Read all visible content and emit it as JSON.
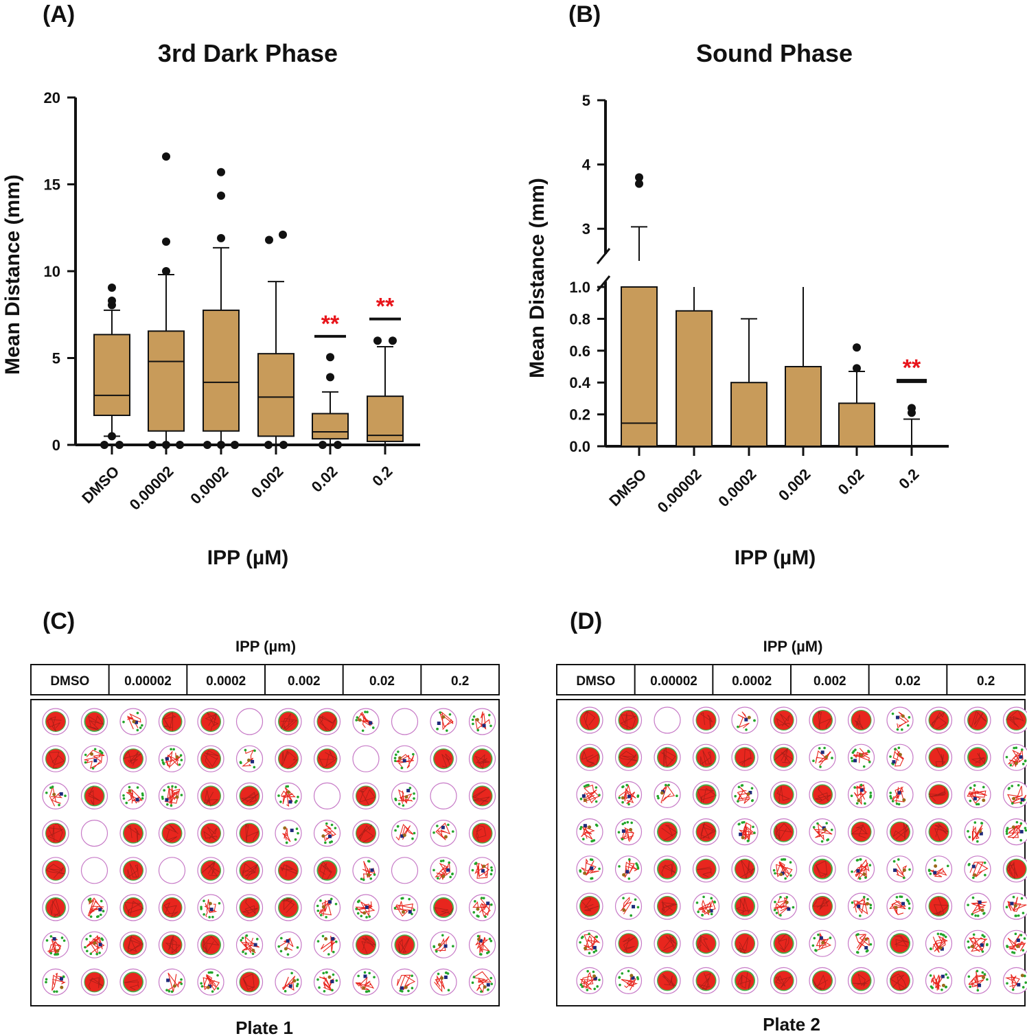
{
  "panels": {
    "a_label": "(A)",
    "b_label": "(B)",
    "c_label": "(C)",
    "d_label": "(D)"
  },
  "colors": {
    "box_fill": "#C89B5A",
    "axis": "#111111",
    "significance": "#E8151B",
    "trace_red": "#E8261E",
    "trace_green": "#22A52A",
    "well_outline": "#C77AC7",
    "marker_blue": "#1E2A7A",
    "marker_brown": "#9A6A1A"
  },
  "chart_data": [
    {
      "type": "box",
      "title": "3rd Dark Phase",
      "xlabel": "IPP (µM)",
      "ylabel": "Mean Distance (mm)",
      "ylim": [
        0,
        20
      ],
      "yticks": [
        "0",
        "5",
        "10",
        "15",
        "20"
      ],
      "yticks_values": [
        0,
        5,
        10,
        15,
        20
      ],
      "categories": [
        "DMSO",
        "0.00002",
        "0.0002",
        "0.002",
        "0.02",
        "0.2"
      ],
      "boxes": [
        {
          "q1": 1.7,
          "median": 2.85,
          "q3": 6.35,
          "whisker_low": 0.5,
          "whisker_high": 7.75,
          "outliers": [
            9.05,
            8.05,
            8.3,
            0.5,
            0.0,
            0.0
          ]
        },
        {
          "q1": 0.8,
          "median": 4.8,
          "q3": 6.55,
          "whisker_low": 0.0,
          "whisker_high": 9.8,
          "outliers": [
            16.6,
            11.7,
            10.0,
            0.0,
            0.0,
            0.0
          ]
        },
        {
          "q1": 0.8,
          "median": 3.6,
          "q3": 7.75,
          "whisker_low": 0.0,
          "whisker_high": 11.35,
          "outliers": [
            15.7,
            14.35,
            11.9,
            0.0,
            0.0,
            0.0
          ]
        },
        {
          "q1": 0.5,
          "median": 2.75,
          "q3": 5.25,
          "whisker_low": 0.0,
          "whisker_high": 9.4,
          "outliers": [
            11.8,
            12.1,
            0.0,
            0.0
          ]
        },
        {
          "q1": 0.35,
          "median": 0.75,
          "q3": 1.8,
          "whisker_low": 0.0,
          "whisker_high": 3.05,
          "outliers": [
            5.05,
            3.9,
            0.0,
            0.0
          ]
        },
        {
          "q1": 0.2,
          "median": 0.55,
          "q3": 2.8,
          "whisker_low": 0.0,
          "whisker_high": 5.65,
          "outliers": [
            6.0,
            6.0
          ]
        }
      ],
      "annotations": [
        {
          "category": "0.02",
          "text": "**",
          "bar_value": 6.25
        },
        {
          "category": "0.2",
          "text": "**",
          "bar_value": 7.25
        }
      ]
    },
    {
      "type": "bar",
      "title": "Sound Phase",
      "xlabel": "IPP (µM)",
      "ylabel": "Mean Distance (mm)",
      "axis_break": true,
      "lower_ylim": [
        0,
        1.0
      ],
      "upper_ylim": [
        2.5,
        5
      ],
      "yticks_lower": [
        "0.0",
        "0.2",
        "0.4",
        "0.6",
        "0.8",
        "1.0"
      ],
      "yticks_lower_values": [
        0,
        0.2,
        0.4,
        0.6,
        0.8,
        1.0
      ],
      "yticks_upper": [
        "3",
        "4",
        "5"
      ],
      "yticks_upper_values": [
        3,
        4,
        5
      ],
      "categories": [
        "DMSO",
        "0.00002",
        "0.0002",
        "0.002",
        "0.02",
        "0.2"
      ],
      "values": [
        1.0,
        0.85,
        0.4,
        0.5,
        0.27,
        0.0
      ],
      "median_line": [
        0.145,
        null,
        null,
        null,
        null,
        null
      ],
      "error_top": [
        3.03,
        1.0,
        0.8,
        1.0,
        0.47,
        0.17
      ],
      "outliers": [
        [
          3.8,
          3.7
        ],
        [],
        [],
        [],
        [
          0.62,
          0.49
        ],
        [
          0.24,
          0.21
        ]
      ],
      "annotations": [
        {
          "category": "0.2",
          "text": "**",
          "bar_value": 0.41
        }
      ]
    }
  ],
  "plates": {
    "c_header": "IPP (µm)",
    "d_header": "IPP (µM)",
    "columns": [
      "DMSO",
      "0.00002",
      "0.0002",
      "0.002",
      "0.02",
      "0.2"
    ],
    "plate1_name": "Plate 1",
    "plate2_name": "Plate 2",
    "rows": 8,
    "cols": 12,
    "plate1_activity": [
      [
        0.95,
        0.6,
        0.2,
        0.8,
        0.85,
        0.0,
        0.75,
        0.95,
        0.3,
        0.05,
        0.15,
        0.25
      ],
      [
        0.9,
        0.5,
        0.85,
        0.55,
        0.95,
        0.2,
        0.9,
        0.9,
        0.05,
        0.3,
        0.8,
        0.7
      ],
      [
        0.2,
        0.7,
        0.5,
        0.55,
        0.85,
        0.9,
        0.35,
        0.05,
        0.95,
        0.4,
        0.0,
        0.85
      ],
      [
        0.95,
        0.05,
        0.75,
        0.85,
        0.95,
        0.85,
        0.15,
        0.3,
        0.9,
        0.15,
        0.1,
        0.85
      ],
      [
        0.95,
        0.0,
        0.85,
        0.05,
        0.8,
        0.85,
        0.9,
        0.6,
        0.4,
        0.0,
        0.5,
        0.3
      ],
      [
        0.75,
        0.5,
        0.85,
        0.95,
        0.35,
        0.9,
        0.7,
        0.4,
        0.45,
        0.3,
        0.6,
        0.45
      ],
      [
        0.5,
        0.55,
        0.9,
        0.95,
        0.75,
        0.5,
        0.15,
        0.15,
        0.85,
        0.7,
        0.2,
        0.35
      ],
      [
        0.3,
        0.95,
        0.7,
        0.15,
        0.5,
        0.95,
        0.15,
        0.55,
        0.4,
        0.2,
        0.15,
        0.35
      ]
    ],
    "plate2_activity": [
      [
        0.95,
        0.85,
        0.0,
        0.95,
        0.1,
        0.95,
        0.9,
        0.95,
        0.2,
        0.9,
        0.85,
        0.95
      ],
      [
        0.9,
        0.85,
        0.75,
        0.7,
        0.8,
        0.8,
        0.15,
        0.55,
        0.2,
        0.9,
        0.6,
        0.5
      ],
      [
        0.55,
        0.45,
        0.2,
        0.6,
        0.45,
        0.75,
        0.85,
        0.5,
        0.3,
        0.95,
        0.5,
        0.4
      ],
      [
        0.45,
        0.3,
        0.65,
        0.85,
        0.5,
        0.8,
        0.35,
        0.9,
        0.8,
        0.75,
        0.3,
        0.55
      ],
      [
        0.4,
        0.4,
        0.6,
        0.85,
        0.85,
        0.5,
        0.6,
        0.5,
        0.2,
        0.2,
        0.15,
        0.85
      ],
      [
        0.9,
        0.15,
        0.85,
        0.55,
        0.6,
        0.4,
        0.9,
        0.3,
        0.35,
        0.85,
        0.4,
        0.35
      ],
      [
        0.55,
        0.9,
        0.75,
        0.75,
        0.9,
        0.6,
        0.3,
        0.35,
        0.6,
        0.5,
        0.55,
        0.45
      ],
      [
        0.45,
        0.4,
        0.8,
        0.75,
        0.6,
        0.85,
        0.8,
        0.7,
        0.95,
        0.55,
        0.4,
        0.25
      ]
    ]
  }
}
